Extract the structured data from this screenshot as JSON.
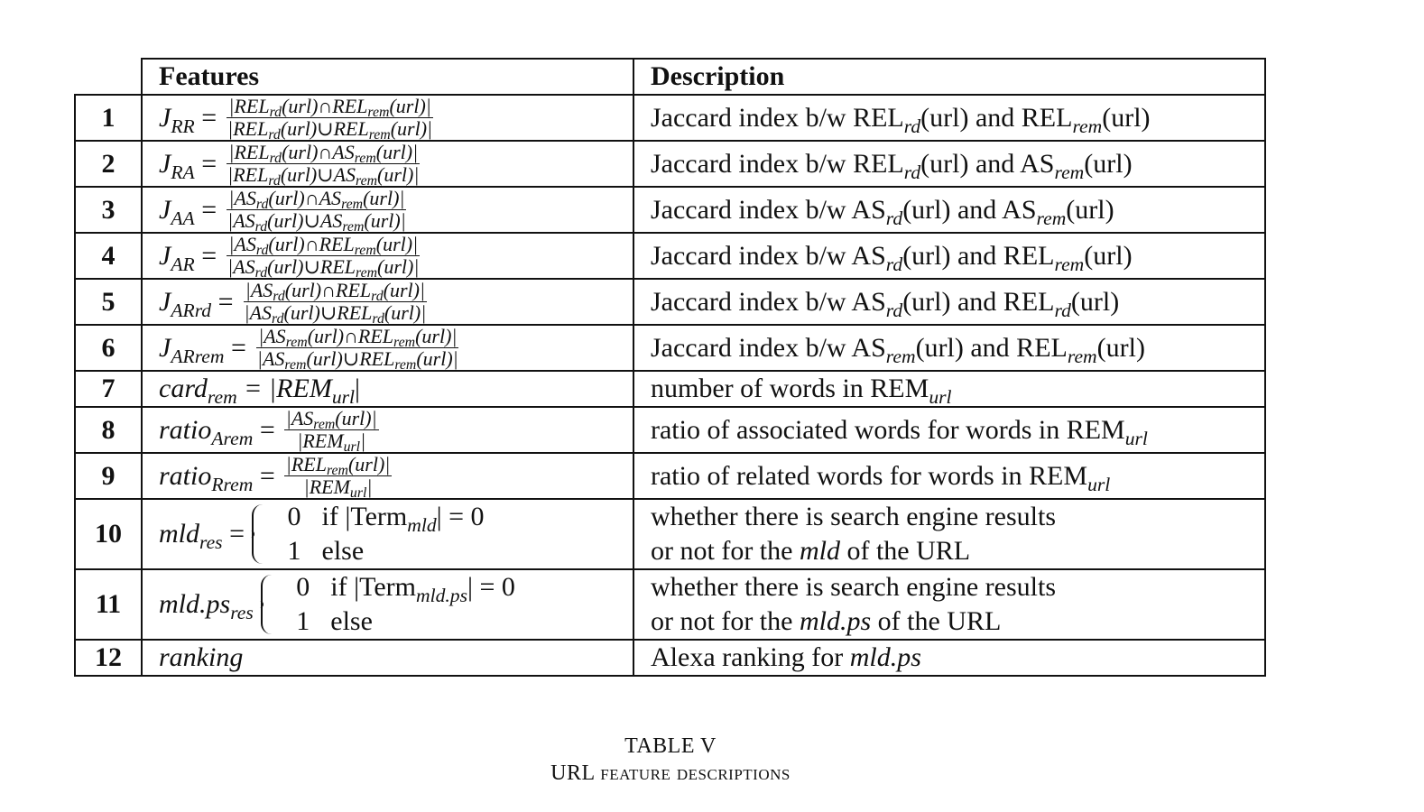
{
  "table": {
    "header": {
      "features": "Features",
      "description": "Description"
    },
    "rows": [
      {
        "num": "1",
        "lhs": "J",
        "lhs_sub": "RR",
        "num_expr": "|REL",
        "n1": "rd",
        "n2": "(url)∩REL",
        "n3": "rem",
        "n4": "(url)|",
        "den_expr": "|REL",
        "d1": "rd",
        "d2": "(url)∪REL",
        "d3": "rem",
        "d4": "(url)|",
        "desc": "Jaccard index b/w REL",
        "desc_s1": "rd",
        "desc_m": "(url) and REL",
        "desc_s2": "rem",
        "desc_e": "(url)"
      },
      {
        "num": "2",
        "lhs": "J",
        "lhs_sub": "RA",
        "num_expr": "|REL",
        "n1": "rd",
        "n2": "(url)∩AS",
        "n3": "rem",
        "n4": "(url)|",
        "den_expr": "|REL",
        "d1": "rd",
        "d2": "(url)∪AS",
        "d3": "rem",
        "d4": "(url)|",
        "desc": "Jaccard index b/w REL",
        "desc_s1": "rd",
        "desc_m": "(url) and AS",
        "desc_s2": "rem",
        "desc_e": "(url)"
      },
      {
        "num": "3",
        "lhs": "J",
        "lhs_sub": "AA",
        "num_expr": "|AS",
        "n1": "rd",
        "n2": "(url)∩AS",
        "n3": "rem",
        "n4": "(url)|",
        "den_expr": "|AS",
        "d1": "rd",
        "d2": "(url)∪AS",
        "d3": "rem",
        "d4": "(url)|",
        "desc": "Jaccard index b/w AS",
        "desc_s1": "rd",
        "desc_m": "(url) and AS",
        "desc_s2": "rem",
        "desc_e": "(url)"
      },
      {
        "num": "4",
        "lhs": "J",
        "lhs_sub": "AR",
        "num_expr": "|AS",
        "n1": "rd",
        "n2": "(url)∩REL",
        "n3": "rem",
        "n4": "(url)|",
        "den_expr": "|AS",
        "d1": "rd",
        "d2": "(url)∪REL",
        "d3": "rem",
        "d4": "(url)|",
        "desc": "Jaccard index b/w AS",
        "desc_s1": "rd",
        "desc_m": "(url) and REL",
        "desc_s2": "rem",
        "desc_e": "(url)"
      },
      {
        "num": "5",
        "lhs": "J",
        "lhs_sub": "ARrd",
        "num_expr": "|AS",
        "n1": "rd",
        "n2": "(url)∩REL",
        "n3": "rd",
        "n4": "(url)|",
        "den_expr": "|AS",
        "d1": "rd",
        "d2": "(url)∪REL",
        "d3": "rd",
        "d4": "(url)|",
        "desc": "Jaccard index b/w AS",
        "desc_s1": "rd",
        "desc_m": "(url) and REL",
        "desc_s2": "rd",
        "desc_e": "(url)"
      },
      {
        "num": "6",
        "lhs": "J",
        "lhs_sub": "ARrem",
        "num_expr": "|AS",
        "n1": "rem",
        "n2": "(url)∩REL",
        "n3": "rem",
        "n4": "(url)|",
        "den_expr": "|AS",
        "d1": "rem",
        "d2": "(url)∪REL",
        "d3": "rem",
        "d4": "(url)|",
        "desc": "Jaccard index b/w AS",
        "desc_s1": "rem",
        "desc_m": "(url) and REL",
        "desc_s2": "rem",
        "desc_e": "(url)"
      }
    ],
    "row7": {
      "num": "7",
      "lhs": "card",
      "lhs_sub": "rem",
      "rhs": "= |REM",
      "rhs_sub": "url",
      "rhs_end": "|",
      "desc": "number of words in REM",
      "desc_sub": "url"
    },
    "row8": {
      "num": "8",
      "lhs": "ratio",
      "lhs_sub": "Arem",
      "numer": "|AS",
      "numer_sub": "rem",
      "numer_end": "(url)|",
      "denom": "|REM",
      "denom_sub": "url",
      "denom_end": "|",
      "desc": "ratio of associated words for words in REM",
      "desc_sub": "url"
    },
    "row9": {
      "num": "9",
      "lhs": "ratio",
      "lhs_sub": "Rrem",
      "numer": "|REL",
      "numer_sub": "rem",
      "numer_end": "(url)|",
      "denom": "|REM",
      "denom_sub": "url",
      "denom_end": "|",
      "desc": "ratio of related words for words in REM",
      "desc_sub": "url"
    },
    "row10": {
      "num": "10",
      "lhs": "mld",
      "lhs_sub": "res",
      "c1v": "0",
      "c1a": "if |Term",
      "c1s": "mld",
      "c1b": "| = 0",
      "c2v": "1",
      "c2a": "else",
      "desc1": "whether there is search engine results",
      "desc2a": "or not for the ",
      "desc2m": "mld",
      "desc2b": " of the URL"
    },
    "row11": {
      "num": "11",
      "lhs": "mld.ps",
      "lhs_sub": "res",
      "c1v": "0",
      "c1a": "if |Term",
      "c1s": "mld.ps",
      "c1b": "| = 0",
      "c2v": "1",
      "c2a": "else",
      "desc1": "whether there is search engine results",
      "desc2a": "or not for the ",
      "desc2m": "mld.ps",
      "desc2b": " of the URL"
    },
    "row12": {
      "num": "12",
      "lhs": "ranking",
      "desc": "Alexa ranking for ",
      "desc_m": "mld.ps"
    }
  },
  "caption": {
    "line1": "TABLE V",
    "line2": "URL feature descriptions"
  }
}
